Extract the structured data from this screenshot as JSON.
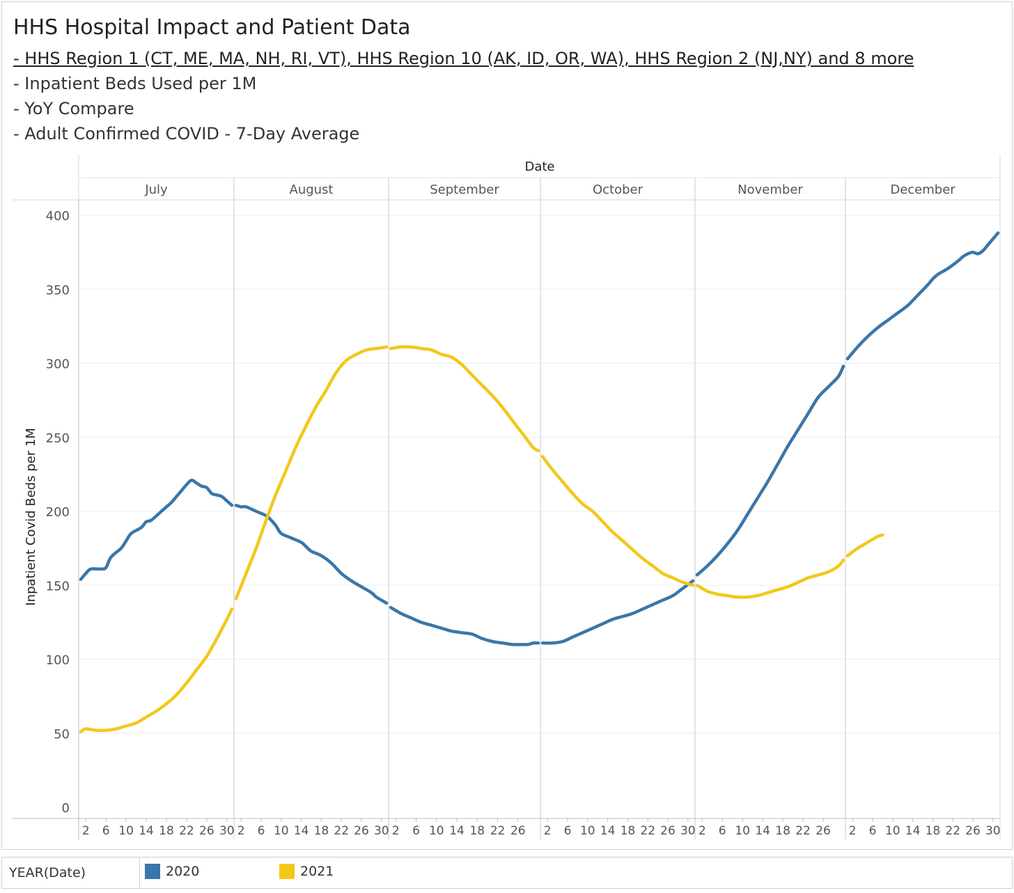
{
  "header": {
    "title": "HHS Hospital Impact and Patient Data",
    "lines": [
      "- HHS Region 1 (CT, ME, MA, NH, RI, VT), HHS Region 10 (AK, ID, OR, WA), HHS Region 2 (NJ,NY) and 8 more",
      "- Inpatient Beds Used per 1M",
      "- YoY Compare",
      "-  Adult Confirmed COVID - 7-Day Average"
    ]
  },
  "legend": {
    "caption": "YEAR(Date)",
    "items": [
      {
        "label": "2020",
        "color": "#3a76a9"
      },
      {
        "label": "2021",
        "color": "#f2c81b"
      }
    ]
  },
  "chart_data": {
    "type": "line",
    "title": "HHS Hospital Impact and Patient Data",
    "xlabel": "Date",
    "ylabel": "Inpatient Covid Beds per 1M",
    "ylim": [
      0,
      400
    ],
    "yticks": [
      0,
      50,
      100,
      150,
      200,
      250,
      300,
      350,
      400
    ],
    "grid": true,
    "legend_position": "bottom",
    "months": [
      {
        "name": "July",
        "days": 31,
        "ticks": [
          "2",
          "6",
          "10",
          "14",
          "18",
          "22",
          "26",
          "30"
        ]
      },
      {
        "name": "August",
        "days": 31,
        "ticks": [
          "2",
          "6",
          "10",
          "14",
          "18",
          "22",
          "26",
          "30"
        ]
      },
      {
        "name": "September",
        "days": 30,
        "ticks": [
          "2",
          "6",
          "10",
          "14",
          "18",
          "22",
          "26"
        ]
      },
      {
        "name": "October",
        "days": 31,
        "ticks": [
          "2",
          "6",
          "10",
          "14",
          "18",
          "22",
          "26",
          "30"
        ]
      },
      {
        "name": "November",
        "days": 30,
        "ticks": [
          "2",
          "6",
          "10",
          "14",
          "18",
          "22",
          "26"
        ]
      },
      {
        "name": "December",
        "days": 31,
        "ticks": [
          "2",
          "6",
          "10",
          "14",
          "18",
          "22",
          "26",
          "30"
        ]
      }
    ],
    "series": [
      {
        "name": "2020",
        "color": "#3a76a9",
        "segments": [
          [
            [
              1,
              154
            ],
            [
              2,
              158
            ],
            [
              3,
              161
            ],
            [
              5,
              161
            ],
            [
              6,
              162
            ],
            [
              7,
              169
            ],
            [
              9,
              175
            ],
            [
              10,
              180
            ],
            [
              11,
              185
            ],
            [
              13,
              189
            ],
            [
              14,
              193
            ],
            [
              15,
              194
            ],
            [
              17,
              200
            ],
            [
              18,
              203
            ],
            [
              19,
              206
            ],
            [
              20,
              210
            ],
            [
              21,
              214
            ],
            [
              22,
              218
            ],
            [
              23,
              221
            ],
            [
              24,
              219
            ],
            [
              25,
              217
            ],
            [
              26,
              216
            ],
            [
              27,
              212
            ],
            [
              28,
              211
            ],
            [
              29,
              210
            ],
            [
              30,
              207
            ],
            [
              31,
              204
            ]
          ],
          [
            [
              1,
              204
            ],
            [
              2,
              203
            ],
            [
              3,
              203
            ],
            [
              5,
              200
            ],
            [
              7,
              197
            ],
            [
              8,
              194
            ],
            [
              9,
              190
            ],
            [
              10,
              185
            ],
            [
              12,
              182
            ],
            [
              14,
              179
            ],
            [
              15,
              176
            ],
            [
              16,
              173
            ],
            [
              18,
              170
            ],
            [
              20,
              165
            ],
            [
              22,
              158
            ],
            [
              24,
              153
            ],
            [
              26,
              149
            ],
            [
              28,
              145
            ],
            [
              29,
              142
            ],
            [
              31,
              138
            ]
          ],
          [
            [
              1,
              135
            ],
            [
              3,
              131
            ],
            [
              5,
              128
            ],
            [
              7,
              125
            ],
            [
              9,
              123
            ],
            [
              11,
              121
            ],
            [
              13,
              119
            ],
            [
              15,
              118
            ],
            [
              17,
              117
            ],
            [
              19,
              114
            ],
            [
              21,
              112
            ],
            [
              23,
              111
            ],
            [
              25,
              110
            ],
            [
              27,
              110
            ],
            [
              28,
              110
            ],
            [
              29,
              111
            ],
            [
              30,
              111
            ]
          ],
          [
            [
              1,
              111
            ],
            [
              3,
              111
            ],
            [
              5,
              112
            ],
            [
              7,
              115
            ],
            [
              9,
              118
            ],
            [
              11,
              121
            ],
            [
              13,
              124
            ],
            [
              15,
              127
            ],
            [
              17,
              129
            ],
            [
              19,
              131
            ],
            [
              21,
              134
            ],
            [
              23,
              137
            ],
            [
              25,
              140
            ],
            [
              27,
              143
            ],
            [
              29,
              148
            ],
            [
              31,
              153
            ]
          ],
          [
            [
              1,
              157
            ],
            [
              3,
              163
            ],
            [
              5,
              170
            ],
            [
              7,
              178
            ],
            [
              9,
              187
            ],
            [
              11,
              198
            ],
            [
              13,
              209
            ],
            [
              15,
              220
            ],
            [
              17,
              232
            ],
            [
              19,
              244
            ],
            [
              21,
              255
            ],
            [
              23,
              266
            ],
            [
              25,
              277
            ],
            [
              27,
              284
            ],
            [
              29,
              291
            ],
            [
              30,
              298
            ]
          ],
          [
            [
              1,
              303
            ],
            [
              3,
              311
            ],
            [
              5,
              318
            ],
            [
              7,
              324
            ],
            [
              9,
              329
            ],
            [
              11,
              334
            ],
            [
              13,
              339
            ],
            [
              15,
              346
            ],
            [
              17,
              353
            ],
            [
              18,
              357
            ],
            [
              19,
              360
            ],
            [
              21,
              364
            ],
            [
              23,
              369
            ],
            [
              24,
              372
            ],
            [
              25,
              374
            ],
            [
              26,
              375
            ],
            [
              27,
              374
            ],
            [
              28,
              376
            ],
            [
              29,
              380
            ],
            [
              30,
              384
            ],
            [
              31,
              388
            ]
          ]
        ]
      },
      {
        "name": "2021",
        "color": "#f2c81b",
        "segments": [
          [
            [
              1,
              51
            ],
            [
              2,
              53
            ],
            [
              4,
              52
            ],
            [
              6,
              52
            ],
            [
              8,
              53
            ],
            [
              10,
              55
            ],
            [
              12,
              57
            ],
            [
              14,
              61
            ],
            [
              16,
              65
            ],
            [
              18,
              70
            ],
            [
              20,
              76
            ],
            [
              22,
              84
            ],
            [
              24,
              93
            ],
            [
              26,
              102
            ],
            [
              28,
              114
            ],
            [
              30,
              127
            ],
            [
              31,
              134
            ]
          ],
          [
            [
              1,
              141
            ],
            [
              3,
              158
            ],
            [
              5,
              175
            ],
            [
              7,
              194
            ],
            [
              9,
              212
            ],
            [
              11,
              228
            ],
            [
              13,
              244
            ],
            [
              15,
              258
            ],
            [
              17,
              271
            ],
            [
              19,
              282
            ],
            [
              21,
              294
            ],
            [
              23,
              302
            ],
            [
              25,
              306
            ],
            [
              27,
              309
            ],
            [
              29,
              310
            ],
            [
              31,
              311
            ]
          ],
          [
            [
              1,
              310
            ],
            [
              3,
              311
            ],
            [
              5,
              311
            ],
            [
              7,
              310
            ],
            [
              9,
              309
            ],
            [
              11,
              306
            ],
            [
              13,
              304
            ],
            [
              15,
              299
            ],
            [
              17,
              292
            ],
            [
              19,
              285
            ],
            [
              21,
              278
            ],
            [
              23,
              270
            ],
            [
              25,
              261
            ],
            [
              27,
              252
            ],
            [
              29,
              243
            ],
            [
              30,
              241
            ]
          ],
          [
            [
              1,
              237
            ],
            [
              3,
              228
            ],
            [
              5,
              220
            ],
            [
              7,
              212
            ],
            [
              9,
              205
            ],
            [
              11,
              200
            ],
            [
              13,
              193
            ],
            [
              15,
              186
            ],
            [
              17,
              180
            ],
            [
              19,
              174
            ],
            [
              21,
              168
            ],
            [
              23,
              163
            ],
            [
              25,
              158
            ],
            [
              27,
              155
            ],
            [
              29,
              152
            ],
            [
              31,
              150
            ]
          ],
          [
            [
              1,
              150
            ],
            [
              3,
              146
            ],
            [
              5,
              144
            ],
            [
              7,
              143
            ],
            [
              9,
              142
            ],
            [
              11,
              142
            ],
            [
              13,
              143
            ],
            [
              15,
              145
            ],
            [
              17,
              147
            ],
            [
              19,
              149
            ],
            [
              21,
              152
            ],
            [
              23,
              155
            ],
            [
              25,
              157
            ],
            [
              27,
              159
            ],
            [
              29,
              163
            ],
            [
              30,
              167
            ]
          ],
          [
            [
              1,
              170
            ],
            [
              3,
              175
            ],
            [
              5,
              179
            ],
            [
              7,
              183
            ],
            [
              8,
              184
            ]
          ]
        ]
      }
    ]
  }
}
